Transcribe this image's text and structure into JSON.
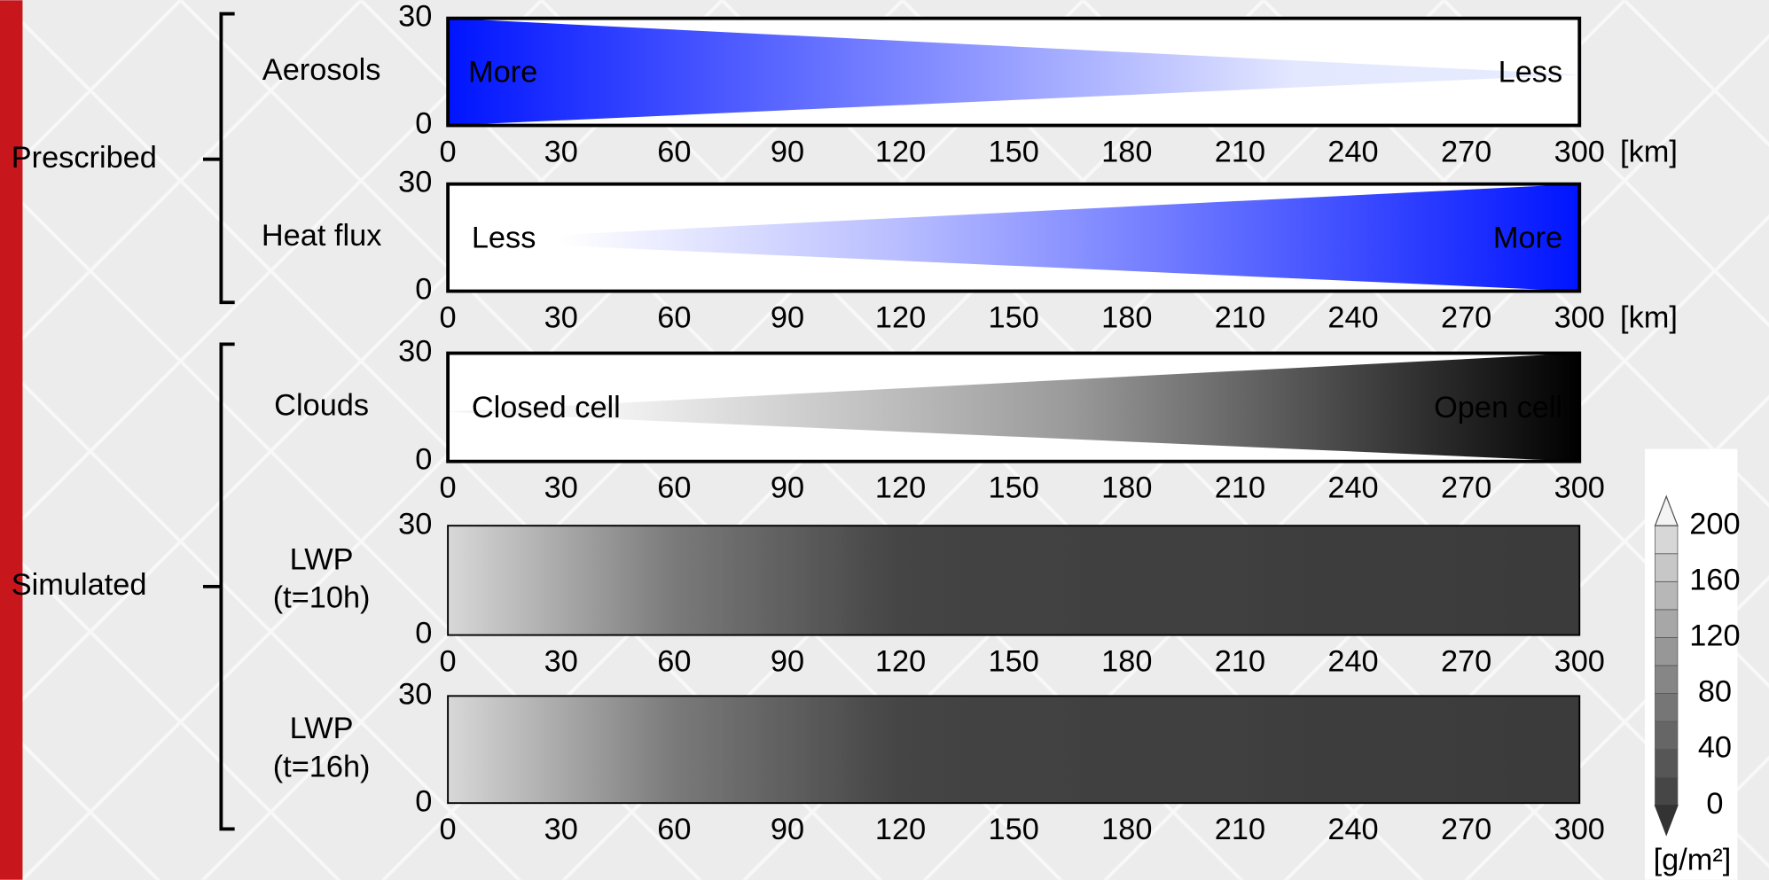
{
  "groups": [
    {
      "label": "Prescribed"
    },
    {
      "label": "Simulated"
    }
  ],
  "panels": [
    {
      "label": [
        "Aerosols"
      ],
      "yticks": [
        0,
        30
      ],
      "xticks": [
        0,
        30,
        60,
        90,
        120,
        150,
        180,
        210,
        240,
        270,
        300
      ],
      "unit": "[km]",
      "left_text": "More",
      "right_text": "Less"
    },
    {
      "label": [
        "Heat flux"
      ],
      "yticks": [
        0,
        30
      ],
      "xticks": [
        0,
        30,
        60,
        90,
        120,
        150,
        180,
        210,
        240,
        270,
        300
      ],
      "unit": "[km]",
      "left_text": "Less",
      "right_text": "More"
    },
    {
      "label": [
        "Clouds"
      ],
      "yticks": [
        0,
        30
      ],
      "xticks": [
        0,
        30,
        60,
        90,
        120,
        150,
        180,
        210,
        240,
        270,
        300
      ],
      "left_text": "Closed cell",
      "right_text": "Open cell"
    },
    {
      "label": [
        "LWP",
        "(t=10h)"
      ],
      "yticks": [
        0,
        30
      ],
      "xticks": [
        0,
        30,
        60,
        90,
        120,
        150,
        180,
        210,
        240,
        270,
        300
      ]
    },
    {
      "label": [
        "LWP",
        "(t=16h)"
      ],
      "yticks": [
        0,
        30
      ],
      "xticks": [
        0,
        30,
        60,
        90,
        120,
        150,
        180,
        210,
        240,
        270,
        300
      ]
    }
  ],
  "colorbar": {
    "ticks": [
      0,
      40,
      80,
      120,
      160,
      200
    ],
    "unit": "[g/m²]"
  }
}
